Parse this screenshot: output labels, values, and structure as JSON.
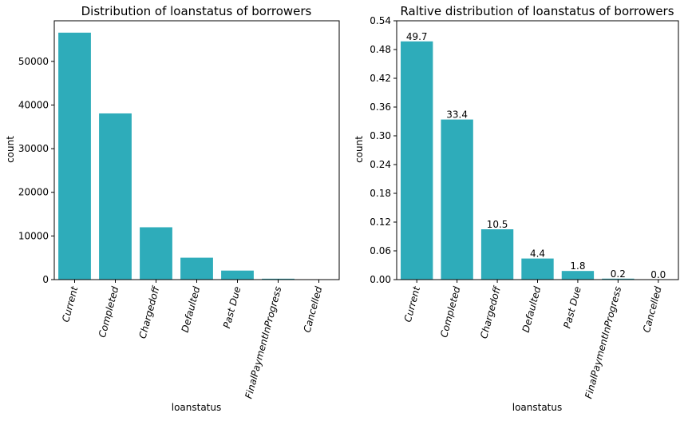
{
  "chart_data": [
    {
      "type": "bar",
      "title": "Distribution of loanstatus of borrowers",
      "xlabel": "loanstatus",
      "ylabel": "count",
      "categories": [
        "Current",
        "Completed",
        "Chargedoff",
        "Defaulted",
        "Past Due",
        "FinalPaymentInProgress",
        "Cancelled"
      ],
      "values": [
        56576,
        38074,
        11992,
        5018,
        2067,
        205,
        5
      ],
      "ylim": [
        0,
        59300
      ],
      "yticks": [
        0,
        10000,
        20000,
        30000,
        40000,
        50000
      ],
      "color": "#2eacba"
    },
    {
      "type": "bar",
      "title": "Raltive distribution of loanstatus of borrowers",
      "xlabel": "loanstatus",
      "ylabel": "count",
      "categories": [
        "Current",
        "Completed",
        "Chargedoff",
        "Defaulted",
        "Past Due",
        "FinalPaymentInProgress",
        "Cancelled"
      ],
      "values": [
        0.497,
        0.334,
        0.105,
        0.044,
        0.018,
        0.002,
        0.0
      ],
      "data_labels": [
        "49.7",
        "33.4",
        "10.5",
        "4.4",
        "1.8",
        "0.2",
        "0.0"
      ],
      "ylim": [
        0,
        0.54
      ],
      "yticks": [
        "0.00",
        "0.06",
        "0.12",
        "0.18",
        "0.24",
        "0.30",
        "0.36",
        "0.42",
        "0.48",
        "0.54"
      ],
      "color": "#2eacba"
    }
  ]
}
